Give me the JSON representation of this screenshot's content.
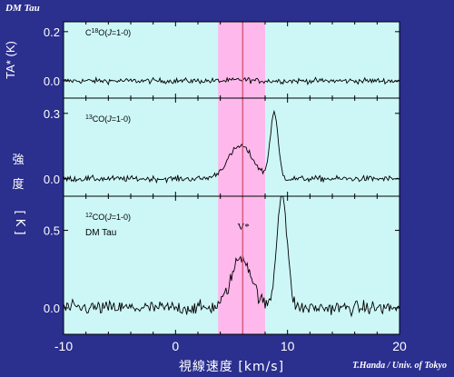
{
  "page": {
    "corner_title": "DM Tau",
    "credit": "T.Handa / Univ. of Tokyo",
    "background_color": "#2b2f8e",
    "panel_color": "#cdf7f7",
    "band_color": "#ffb8ec",
    "marker_color": "#d0587a",
    "text_color": "#ffffff"
  },
  "chart_data": {
    "type": "line",
    "xlabel": "視線速度 [km/s]",
    "xlim": [
      -10,
      20
    ],
    "xticks": [
      -10,
      0,
      10,
      20
    ],
    "xtick_labels": [
      "-10",
      "0",
      "10",
      "20"
    ],
    "shaded_band": [
      3.8,
      8.0
    ],
    "vline": {
      "x": 6.0,
      "label": "V*"
    },
    "panels": [
      {
        "id": "c18o",
        "annotation": "C18O(J=1-0)",
        "ylabel": "TA* (K)",
        "ylim": [
          -0.07,
          0.24
        ],
        "yticks": [
          0.0,
          0.2
        ],
        "ytick_labels": [
          "0.0",
          "0.2"
        ],
        "noise": 0.01,
        "lines": [
          {
            "center": 6.0,
            "width": 0.6,
            "peak": 0.005
          }
        ]
      },
      {
        "id": "13co",
        "annotation": "13CO(J=1-0)",
        "ylabel": "",
        "ylim": [
          -0.08,
          0.37
        ],
        "yticks": [
          0.0,
          0.3
        ],
        "ytick_labels": [
          "0.0",
          "0.3"
        ],
        "noise": 0.012,
        "lines": [
          {
            "center": 5.8,
            "width": 1.1,
            "peak": 0.15
          },
          {
            "center": 8.8,
            "width": 0.35,
            "peak": 0.3
          }
        ]
      },
      {
        "id": "12co",
        "annotation": "12CO(J=1-0)",
        "sub_annotation": "DM Tau",
        "ylabel": "強度 [K]",
        "ylim": [
          -0.17,
          0.72
        ],
        "yticks": [
          0.0,
          0.5
        ],
        "ytick_labels": [
          "0.0",
          "0.5"
        ],
        "noise": 0.04,
        "lines": [
          {
            "center": 5.9,
            "width": 0.9,
            "peak": 0.33
          },
          {
            "center": 9.5,
            "width": 0.45,
            "peak": 0.75
          }
        ]
      }
    ]
  }
}
